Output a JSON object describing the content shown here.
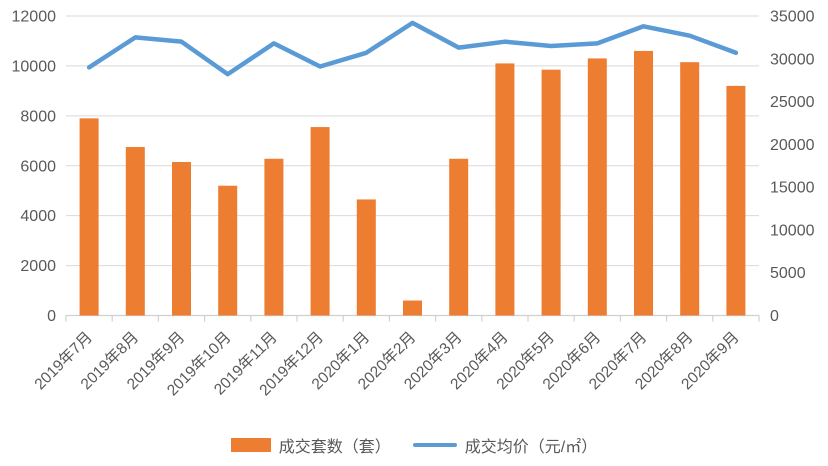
{
  "colors": {
    "background": "#FFFFFF",
    "gridline": "#D9D9D9",
    "axis_line": "#D0D0D0",
    "axis_text": "#595959",
    "bar_series": "#ED7D31",
    "line_series": "#5B9BD5"
  },
  "chart_data": {
    "type": "bar+line",
    "title": "",
    "categories": [
      "2019年7月",
      "2019年8月",
      "2019年9月",
      "2019年10月",
      "2019年11月",
      "2019年12月",
      "2020年1月",
      "2020年2月",
      "2020年3月",
      "2020年4月",
      "2020年5月",
      "2020年6月",
      "2020年7月",
      "2020年8月",
      "2020年9月"
    ],
    "series": [
      {
        "name": "成交套数（套）",
        "type": "bar",
        "axis": "left",
        "color": "#ED7D31",
        "values": [
          7900,
          6750,
          6150,
          5200,
          6280,
          7550,
          4650,
          600,
          6280,
          10100,
          9850,
          10300,
          10600,
          10150,
          9200
        ]
      },
      {
        "name": "成交均价（元/㎡）",
        "type": "line",
        "axis": "right",
        "color": "#5B9BD5",
        "values": [
          29000,
          32500,
          32000,
          28200,
          31800,
          29100,
          30700,
          34200,
          31300,
          32000,
          31500,
          31800,
          33800,
          32700,
          30700
        ]
      }
    ],
    "left_axis": {
      "min": 0,
      "max": 12000,
      "step": 2000,
      "tick_labels": [
        "0",
        "2000",
        "4000",
        "6000",
        "8000",
        "10000",
        "12000"
      ]
    },
    "right_axis": {
      "min": 0,
      "max": 35000,
      "step": 5000,
      "tick_labels": [
        "0",
        "5000",
        "10000",
        "15000",
        "20000",
        "25000",
        "30000",
        "35000"
      ]
    },
    "grid": true,
    "legend_position": "bottom",
    "x_label_rotation": -45
  }
}
